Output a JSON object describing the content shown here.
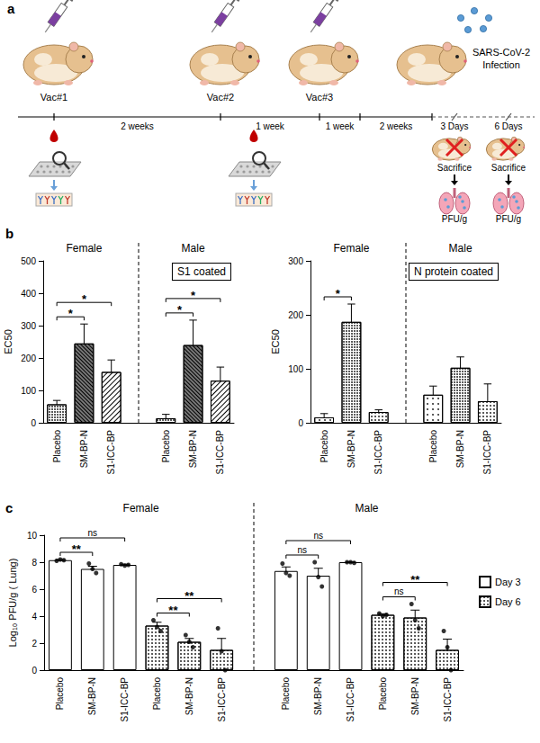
{
  "diagram": {
    "panel": "a",
    "vaccinations": [
      "Vac#1",
      "Vac#2",
      "Vac#3"
    ],
    "intervals": [
      "2 weeks",
      "1 week",
      "1 week",
      "2 weeks"
    ],
    "infection": "SARS-CoV-2 Infection",
    "endpoints": [
      {
        "time": "3 Days",
        "action": "Sacrifice",
        "readout": "PFU/g"
      },
      {
        "time": "6 Days",
        "action": "Sacrifice",
        "readout": "PFU/g"
      }
    ]
  },
  "chart_data": [
    {
      "type": "bar",
      "panel": "b",
      "title": "S1 coated",
      "ylabel": "EC50",
      "categories": [
        "Placebo",
        "SM-BP-N",
        "S1-ICC-BP",
        null,
        "Placebo",
        "SM-BP-N",
        "S1-ICC-BP"
      ],
      "groups": [
        {
          "label": "Female",
          "from": 0,
          "to": 2
        },
        {
          "label": "Male",
          "from": 4,
          "to": 6
        }
      ],
      "values": [
        57,
        245,
        157,
        null,
        14,
        240,
        130
      ],
      "errors": [
        12,
        60,
        37,
        null,
        12,
        77,
        42
      ],
      "color": "#000000",
      "ylim": [
        0,
        500
      ],
      "yticks": [
        0,
        100,
        200,
        300,
        400,
        500
      ],
      "grid": false,
      "significance": [
        {
          "from": 0,
          "to": 1,
          "label": "*"
        },
        {
          "from": 0,
          "to": 2,
          "label": "*"
        },
        {
          "from": 4,
          "to": 5,
          "label": "*"
        },
        {
          "from": 4,
          "to": 6,
          "label": "*"
        }
      ]
    },
    {
      "type": "bar",
      "title": "N protein coated",
      "ylabel": "EC50",
      "categories": [
        "Placebo",
        "SM-BP-N",
        "S1-ICC-BP",
        null,
        "Placebo",
        "SM-BP-N",
        "S1-ICC-BP"
      ],
      "groups": [
        {
          "label": "Female",
          "from": 0,
          "to": 2
        },
        {
          "label": "Male",
          "from": 4,
          "to": 6
        }
      ],
      "values": [
        10,
        187,
        20,
        null,
        52,
        102,
        40
      ],
      "errors": [
        7,
        33,
        4,
        null,
        16,
        20,
        32
      ],
      "color": "#000000",
      "ylim": [
        0,
        300
      ],
      "yticks": [
        0,
        100,
        200,
        300
      ],
      "grid": false,
      "significance": [
        {
          "from": 0,
          "to": 1,
          "label": "*"
        }
      ]
    },
    {
      "type": "bar",
      "panel": "c",
      "ylabel": "Log₁₀ PFU/g ( Lung)",
      "categories": [
        "Placebo",
        "SM-BP-N",
        "S1-ICC-BP",
        "Placebo",
        "SM-BP-N",
        "S1-ICC-BP",
        null,
        "Placebo",
        "SM-BP-N",
        "S1-ICC-BP",
        "Placebo",
        "SM-BP-N",
        "S1-ICC-BP"
      ],
      "groups": [
        {
          "label": "Female",
          "from": 0,
          "to": 5
        },
        {
          "label": "Male",
          "from": 7,
          "to": 12
        }
      ],
      "series": [
        {
          "name": "Day 3",
          "color": "#000000",
          "values": [
            8.15,
            7.5,
            7.8,
            null,
            null,
            null,
            null,
            7.35,
            7.0,
            8.0,
            null,
            null,
            null
          ],
          "errors": [
            0.05,
            0.2,
            0.05,
            null,
            null,
            null,
            null,
            0.3,
            0.55,
            0.02,
            null,
            null,
            null
          ],
          "points": [
            [
              8.1,
              8.2,
              8.15
            ],
            [
              7.9,
              7.5,
              7.2
            ],
            [
              7.85,
              7.75,
              7.8
            ],
            null,
            null,
            null,
            null,
            [
              7.9,
              7.2,
              7.0
            ],
            [
              8.0,
              6.9,
              6.2
            ],
            [
              8.0,
              8.0,
              7.95
            ],
            null,
            null,
            null
          ]
        },
        {
          "name": "Day 6",
          "color": "#000000",
          "values": [
            null,
            null,
            null,
            3.3,
            2.1,
            1.5,
            null,
            null,
            null,
            null,
            4.1,
            3.9,
            1.5
          ],
          "errors": [
            null,
            null,
            null,
            0.25,
            0.25,
            0.85,
            null,
            null,
            null,
            null,
            0.08,
            0.55,
            0.8
          ],
          "points": [
            null,
            null,
            null,
            [
              3.7,
              3.2,
              2.9
            ],
            [
              2.6,
              2.1,
              1.7
            ],
            [
              3.1,
              1.4,
              0
            ],
            null,
            null,
            null,
            null,
            [
              4.2,
              4.0,
              4.1
            ],
            [
              4.9,
              3.7,
              3.1
            ],
            [
              2.9,
              1.7,
              0
            ]
          ]
        }
      ],
      "ylim": [
        0,
        10
      ],
      "yticks": [
        0,
        2,
        4,
        6,
        8,
        10
      ],
      "grid": false,
      "legend": "right",
      "significance": [
        {
          "from": 0,
          "to": 1,
          "label": "**"
        },
        {
          "from": 0,
          "to": 2,
          "label": "ns"
        },
        {
          "from": 3,
          "to": 4,
          "label": "**"
        },
        {
          "from": 3,
          "to": 5,
          "label": "**"
        },
        {
          "from": 7,
          "to": 8,
          "label": "ns"
        },
        {
          "from": 7,
          "to": 9,
          "label": "ns"
        },
        {
          "from": 10,
          "to": 11,
          "label": "ns"
        },
        {
          "from": 10,
          "to": 12,
          "label": "**"
        }
      ]
    }
  ]
}
